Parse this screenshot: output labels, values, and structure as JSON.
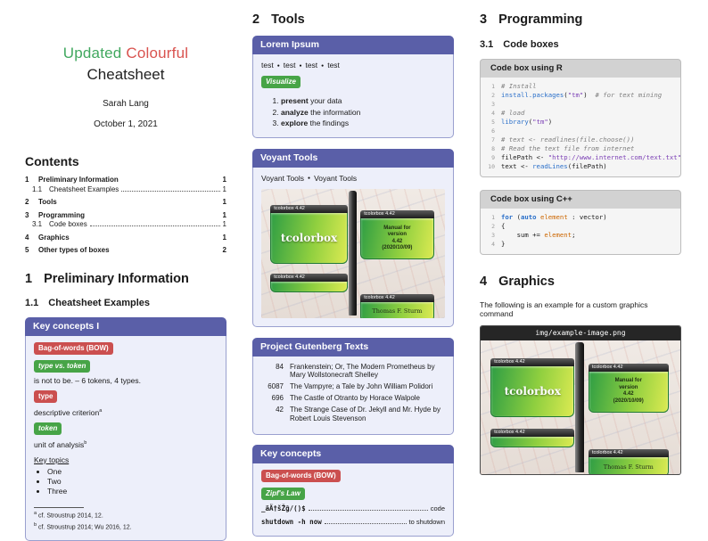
{
  "titleblock": {
    "word_green": "Updated",
    "word_red": "Colourful",
    "line2": "Cheatsheet",
    "author": "Sarah Lang",
    "date": "October 1, 2021"
  },
  "contents": {
    "heading": "Contents",
    "entries": [
      {
        "num": "1",
        "label": "Preliminary Information",
        "page": "1",
        "style": "section"
      },
      {
        "num": "1.1",
        "label": "Cheatsheet Examples",
        "page": "1",
        "style": "subsection"
      },
      {
        "num": "2",
        "label": "Tools",
        "page": "1",
        "style": "section"
      },
      {
        "num": "3",
        "label": "Programming",
        "page": "1",
        "style": "section"
      },
      {
        "num": "3.1",
        "label": "Code boxes",
        "page": "1",
        "style": "subsection"
      },
      {
        "num": "4",
        "label": "Graphics",
        "page": "1",
        "style": "section"
      },
      {
        "num": "5",
        "label": "Other types of boxes",
        "page": "2",
        "style": "section"
      }
    ]
  },
  "sec_preliminary": {
    "num": "1",
    "title": "Preliminary Information"
  },
  "sub_cheatsheet": {
    "num": "1.1",
    "title": "Cheatsheet Examples"
  },
  "key_concepts_1": {
    "header": "Key concepts I",
    "badge_bow": "Bag-of-words (BOW)",
    "badge_type_token": "type vs. token",
    "type_token_text": "is not to be. – 6 tokens, 4 types.",
    "badge_type": "type",
    "type_text": "descriptive criterion",
    "type_sup": "a",
    "badge_token": "token",
    "token_text": "unit of analysis",
    "token_sup": "b",
    "key_topics_label": "Key topics",
    "topics": [
      "One",
      "Two",
      "Three"
    ],
    "footnotes": [
      {
        "sup": "a",
        "text": "cf. Stroustrup 2014, 12."
      },
      {
        "sup": "b",
        "text": "cf. Stroustrup 2014; Wu 2016, 12."
      }
    ]
  },
  "sec_tools": {
    "num": "2",
    "title": "Tools"
  },
  "lorem": {
    "header": "Lorem Ipsum",
    "tests": [
      "test",
      "test",
      "test",
      "test"
    ],
    "badge": "Visualize",
    "steps": [
      {
        "bold": "present",
        "rest": " your data"
      },
      {
        "bold": "analyze",
        "rest": " the information"
      },
      {
        "bold": "explore",
        "rest": " the findings"
      }
    ]
  },
  "voyant": {
    "header": "Voyant Tools",
    "links": [
      "Voyant Tools",
      "Voyant Tools"
    ]
  },
  "poster": {
    "tab": "tcolorbox 4.42",
    "main_title": "tcolorbox",
    "manual_text": "Manual for\nversion\n4.42\n(2020/10/09)",
    "author": "Thomas F. Sturm"
  },
  "gutenberg": {
    "header": "Project Gutenberg Texts",
    "rows": [
      {
        "id": "84",
        "title": "Frankenstein; Or, The Modern Prometheus by Mary Wollstonecraft Shelley"
      },
      {
        "id": "6087",
        "title": "The Vampyre; a Tale by John William Polidori"
      },
      {
        "id": "696",
        "title": "The Castle of Otranto by Horace Walpole"
      },
      {
        "id": "42",
        "title": "The Strange Case of Dr. Jekyll and Mr. Hyde by Robert Louis Stevenson"
      }
    ]
  },
  "key_concepts_2": {
    "header": "Key concepts",
    "badge_bow": "Bag-of-words (BOW)",
    "badge_zipf": "Zipf's Law",
    "dotlines": [
      {
        "left": "_äÄ†šŽğ/()$",
        "right": "code"
      },
      {
        "left": "shutdown -h now",
        "right": "to shutdown"
      }
    ]
  },
  "sec_programming": {
    "num": "3",
    "title": "Programming"
  },
  "sub_codeboxes": {
    "num": "3.1",
    "title": "Code boxes"
  },
  "rbox": {
    "title": "Code box using R",
    "lines": [
      [
        [
          "com",
          "# Install"
        ]
      ],
      [
        [
          "fn",
          "install.packages"
        ],
        [
          "pl",
          "("
        ],
        [
          "str",
          "\"tm\""
        ],
        [
          "pl",
          ")"
        ],
        [
          "com",
          "  # for text mining"
        ]
      ],
      [],
      [
        [
          "com",
          "# load"
        ]
      ],
      [
        [
          "fn",
          "library"
        ],
        [
          "pl",
          "("
        ],
        [
          "str",
          "\"tm\""
        ],
        [
          "pl",
          ")"
        ]
      ],
      [],
      [
        [
          "com",
          "# text <- readlines(file.choose())"
        ]
      ],
      [
        [
          "com",
          "# Read the text file from internet"
        ]
      ],
      [
        [
          "pl",
          "filePath <- "
        ],
        [
          "str",
          "\"http://www.internet.com/text.txt\""
        ]
      ],
      [
        [
          "pl",
          "text <- "
        ],
        [
          "fn",
          "readLines"
        ],
        [
          "pl",
          "(filePath)"
        ]
      ]
    ]
  },
  "cppbox": {
    "title": "Code box using C++",
    "lines": [
      [
        [
          "kw",
          "for"
        ],
        [
          "pl",
          " ("
        ],
        [
          "kw",
          "auto"
        ],
        [
          "org",
          " element"
        ],
        [
          "pl",
          " : vector)"
        ]
      ],
      [
        [
          "pl",
          "{"
        ]
      ],
      [
        [
          "pl",
          "    sum += "
        ],
        [
          "org",
          "element"
        ],
        [
          "pl",
          ";"
        ]
      ],
      [
        [
          "pl",
          "}"
        ]
      ]
    ]
  },
  "sec_graphics": {
    "num": "4",
    "title": "Graphics"
  },
  "graphics_caption": "The following is an example for a custom graphics command",
  "image_title": "img/example-image.png"
}
